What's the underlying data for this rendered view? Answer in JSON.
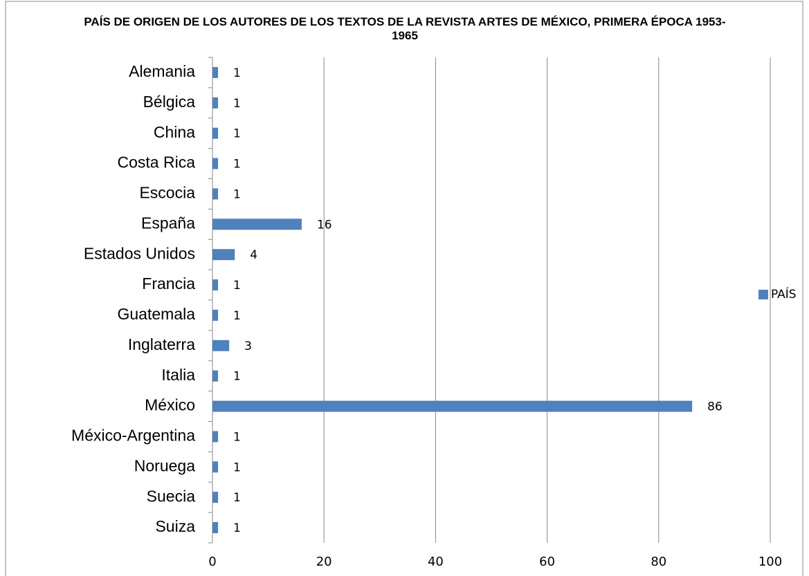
{
  "chart_data": {
    "type": "bar",
    "orientation": "horizontal",
    "title": "PAÍS DE ORIGEN DE LOS AUTORES DE LOS TEXTOS DE LA REVISTA ARTES DE MÉXICO, PRIMERA ÉPOCA 1953-1965",
    "categories": [
      "Alemania",
      "Bélgica",
      "China",
      "Costa Rica",
      "Escocia",
      "España",
      "Estados Unidos",
      "Francia",
      "Guatemala",
      "Inglaterra",
      "Italia",
      "México",
      "México-Argentina",
      "Noruega",
      "Suecia",
      "Suiza"
    ],
    "series": [
      {
        "name": "PAÍS",
        "color": "#4f81bd",
        "values": [
          1,
          1,
          1,
          1,
          1,
          16,
          4,
          1,
          1,
          3,
          1,
          86,
          1,
          1,
          1,
          1
        ]
      }
    ],
    "xlim": [
      0,
      100
    ],
    "xticks": [
      0,
      20,
      40,
      60,
      80,
      100
    ],
    "grid": true,
    "legend": "right"
  }
}
